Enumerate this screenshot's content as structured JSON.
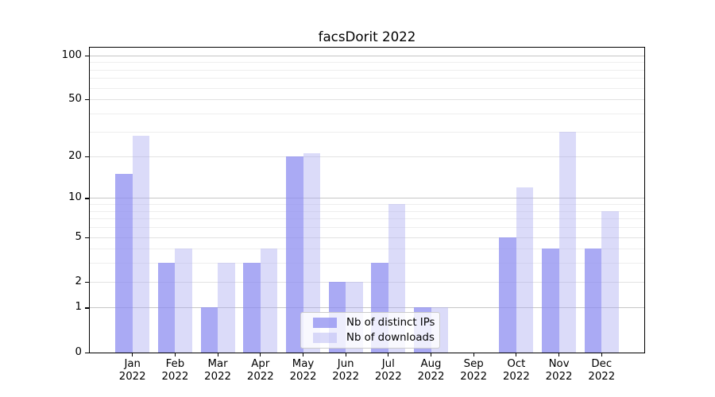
{
  "title": "facsDorit 2022",
  "chart_data": {
    "type": "bar",
    "title": "facsDorit 2022",
    "categories": [
      "Jan",
      "Feb",
      "Mar",
      "Apr",
      "May",
      "Jun",
      "Jul",
      "Aug",
      "Sep",
      "Oct",
      "Nov",
      "Dec"
    ],
    "x_tick_year": "2022",
    "series": [
      {
        "name": "Nb of distinct IPs",
        "color": "rgba(139,139,240,0.73)",
        "values": [
          15,
          3,
          1,
          3,
          20,
          2,
          3,
          1,
          0,
          5,
          4,
          4
        ]
      },
      {
        "name": "Nb of downloads",
        "color": "rgba(170,170,240,0.42)",
        "values": [
          28,
          4,
          3,
          4,
          21,
          2,
          9,
          1,
          0,
          12,
          30,
          8
        ]
      }
    ],
    "yscale": "log10(value+1)",
    "yticks": [
      0,
      1,
      2,
      5,
      10,
      20,
      50,
      100
    ],
    "ylim": [
      0,
      114
    ],
    "grid": true,
    "legend_position": "lower center",
    "colors": {
      "axis": "#000000",
      "grid_major": "#c6c6c6",
      "grid_mid": "#e2e2e2",
      "grid_minor": "#eeeeee",
      "legend_border": "#cccccc"
    }
  }
}
